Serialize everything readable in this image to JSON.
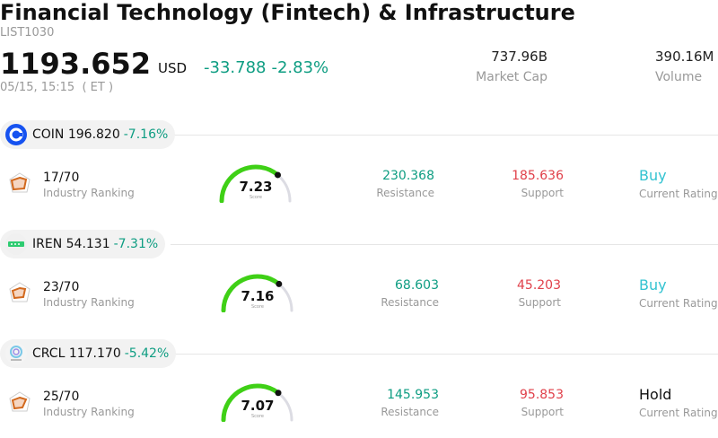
{
  "header": {
    "title": "Financial Technology (Fintech) & Infrastructure",
    "code": "LIST1030",
    "price": "1193.652",
    "currency": "USD",
    "change": "-33.788",
    "change_pct": "-2.83%",
    "time": "05/15, 15:15  ( ET )",
    "market_cap_value": "737.96B",
    "market_cap_label": "Market Cap",
    "volume_value": "390.16M",
    "volume_label": "Volume"
  },
  "stocks": [
    {
      "symbol": "COIN 196.820",
      "pct": "-7.16%",
      "logo": "coinbase-logo",
      "rank": "17/70",
      "rank_label": "Industry Ranking",
      "score": "7.23",
      "score_value": 7.23,
      "score_label": "Score",
      "resistance": "230.368",
      "resistance_label": "Resistance",
      "support": "185.636",
      "support_label": "Support",
      "rating": "Buy",
      "rating_label": "Current Rating",
      "rating_color": "#33c3d1"
    },
    {
      "symbol": "IREN 54.131",
      "pct": "-7.31%",
      "logo": "iren-logo",
      "rank": "23/70",
      "rank_label": "Industry Ranking",
      "score": "7.16",
      "score_value": 7.16,
      "score_label": "Score",
      "resistance": "68.603",
      "resistance_label": "Resistance",
      "support": "45.203",
      "support_label": "Support",
      "rating": "Buy",
      "rating_label": "Current Rating",
      "rating_color": "#33c3d1"
    },
    {
      "symbol": "CRCL 117.170",
      "pct": "-5.42%",
      "logo": "circle-logo",
      "rank": "25/70",
      "rank_label": "Industry Ranking",
      "score": "7.07",
      "score_value": 7.07,
      "score_label": "Score",
      "resistance": "145.953",
      "resistance_label": "Resistance",
      "support": "95.853",
      "support_label": "Support",
      "rating": "Hold",
      "rating_label": "Current Rating",
      "rating_color": "#111111"
    }
  ],
  "colors": {
    "positive_green": "#0e9d82",
    "negative_red": "#e0404a",
    "gauge_green": "#3fd016",
    "gauge_track": "#dcdce3"
  }
}
